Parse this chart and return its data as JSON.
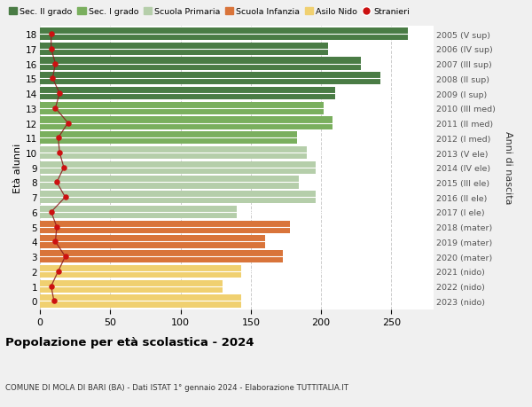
{
  "ages": [
    18,
    17,
    16,
    15,
    14,
    13,
    12,
    11,
    10,
    9,
    8,
    7,
    6,
    5,
    4,
    3,
    2,
    1,
    0
  ],
  "years_labels": [
    "2005 (V sup)",
    "2006 (IV sup)",
    "2007 (III sup)",
    "2008 (II sup)",
    "2009 (I sup)",
    "2010 (III med)",
    "2011 (II med)",
    "2012 (I med)",
    "2013 (V ele)",
    "2014 (IV ele)",
    "2015 (III ele)",
    "2016 (II ele)",
    "2017 (I ele)",
    "2018 (mater)",
    "2019 (mater)",
    "2020 (mater)",
    "2021 (nido)",
    "2022 (nido)",
    "2023 (nido)"
  ],
  "bar_values": [
    262,
    205,
    228,
    242,
    210,
    202,
    208,
    183,
    190,
    196,
    184,
    196,
    140,
    178,
    160,
    173,
    143,
    130,
    143
  ],
  "stranieri_values": [
    8,
    8,
    11,
    9,
    14,
    11,
    20,
    13,
    14,
    17,
    12,
    18,
    8,
    12,
    11,
    18,
    13,
    8,
    10
  ],
  "bar_colors": [
    "#4a7c45",
    "#4a7c45",
    "#4a7c45",
    "#4a7c45",
    "#4a7c45",
    "#7aaf5e",
    "#7aaf5e",
    "#7aaf5e",
    "#b5ceaa",
    "#b5ceaa",
    "#b5ceaa",
    "#b5ceaa",
    "#b5ceaa",
    "#d9743a",
    "#d9743a",
    "#d9743a",
    "#f0d070",
    "#f0d070",
    "#f0d070"
  ],
  "legend_labels": [
    "Sec. II grado",
    "Sec. I grado",
    "Scuola Primaria",
    "Scuola Infanzia",
    "Asilo Nido",
    "Stranieri"
  ],
  "legend_colors": [
    "#4a7c45",
    "#7aaf5e",
    "#b5ceaa",
    "#d9743a",
    "#f0d070",
    "#cc1111"
  ],
  "title": "Popolazione per età scolastica - 2024",
  "subtitle": "COMUNE DI MOLA DI BARI (BA) - Dati ISTAT 1° gennaio 2024 - Elaborazione TUTTITALIA.IT",
  "ylabel_left": "Età alunni",
  "ylabel_right": "Anni di nascita",
  "xlim": [
    0,
    280
  ],
  "ylim_min": -0.55,
  "ylim_max": 18.55,
  "background_color": "#f0f0f0",
  "bar_background": "#ffffff",
  "grid_color": "#cccccc",
  "xticks": [
    0,
    50,
    100,
    150,
    200,
    250
  ]
}
